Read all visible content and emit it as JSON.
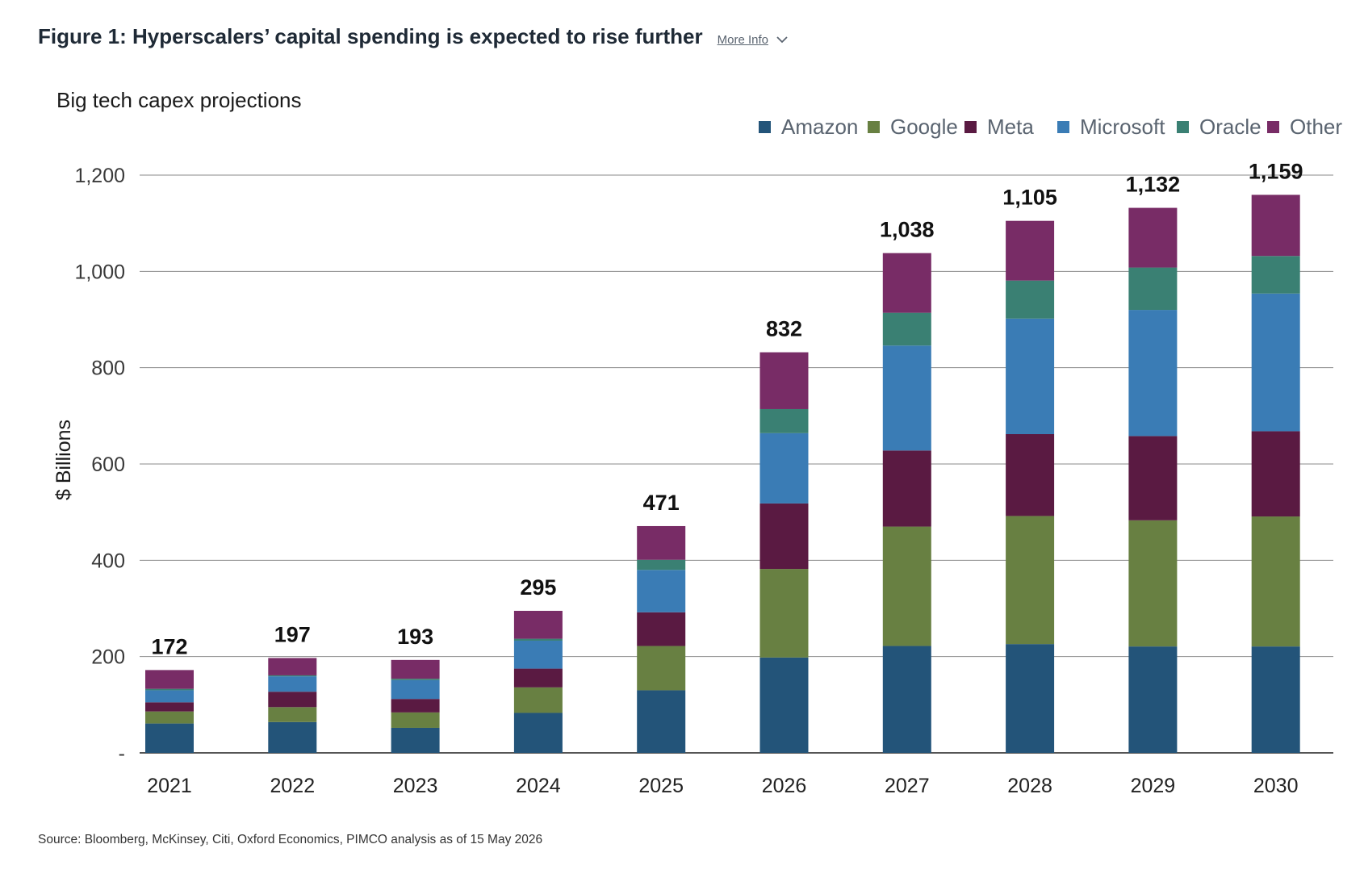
{
  "header": {
    "title": "Figure 1: Hyperscalers’ capital spending is expected to rise further",
    "more_info": "More Info"
  },
  "source": "Source: Bloomberg, McKinsey, Citi, Oxford Economics, PIMCO analysis as of 15 May 2026",
  "chart_data": {
    "type": "bar",
    "stacked": true,
    "subtitle": "Big tech capex projections",
    "ylabel": "$ Billions",
    "xlabel": "",
    "ylim": [
      0,
      1200
    ],
    "yticks": [
      {
        "value": 0,
        "label": "-"
      },
      {
        "value": 200,
        "label": "200"
      },
      {
        "value": 400,
        "label": "400"
      },
      {
        "value": 600,
        "label": "600"
      },
      {
        "value": 800,
        "label": "800"
      },
      {
        "value": 1000,
        "label": "1,000"
      },
      {
        "value": 1200,
        "label": "1,200"
      }
    ],
    "grid": true,
    "legend_position": "top-right",
    "categories": [
      "2021",
      "2022",
      "2023",
      "2024",
      "2025",
      "2026",
      "2027",
      "2028",
      "2029",
      "2030"
    ],
    "totals": [
      "172",
      "197",
      "193",
      "295",
      "471",
      "832",
      "1,038",
      "1,105",
      "1,132",
      "1,159"
    ],
    "series": [
      {
        "name": "Amazon",
        "color": "#235479",
        "values": [
          61,
          64,
          52,
          83,
          130,
          198,
          222,
          226,
          221,
          221
        ]
      },
      {
        "name": "Google",
        "color": "#688042",
        "values": [
          25,
          31,
          32,
          53,
          92,
          184,
          248,
          266,
          262,
          270
        ]
      },
      {
        "name": "Meta",
        "color": "#5a1a42",
        "values": [
          19,
          32,
          28,
          39,
          70,
          136,
          158,
          170,
          175,
          177
        ]
      },
      {
        "name": "Microsoft",
        "color": "#3a7cb5",
        "values": [
          25,
          32,
          39,
          58,
          88,
          146,
          218,
          240,
          262,
          286
        ]
      },
      {
        "name": "Oracle",
        "color": "#3a8073",
        "values": [
          3,
          2,
          3,
          4,
          21,
          50,
          68,
          79,
          88,
          78
        ]
      },
      {
        "name": "Other",
        "color": "#782c66",
        "values": [
          39,
          36,
          39,
          58,
          70,
          118,
          124,
          124,
          124,
          127
        ]
      }
    ]
  }
}
